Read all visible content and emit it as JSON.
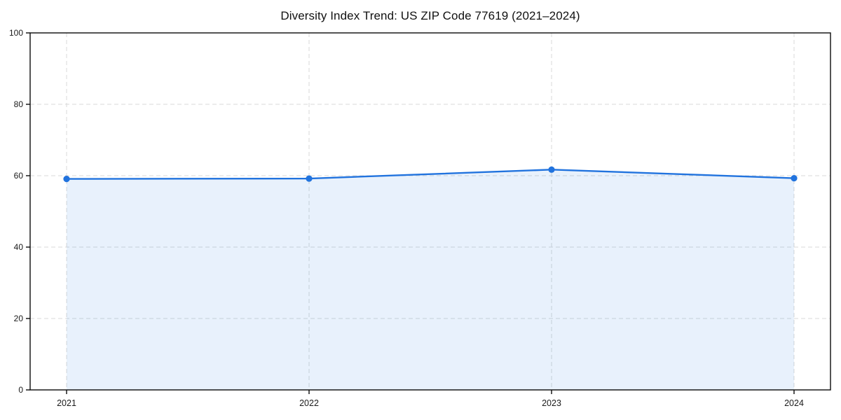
{
  "chart_data": {
    "type": "area",
    "title": "Diversity Index Trend: US ZIP Code 77619 (2021–2024)",
    "series_name": "Diversity Index",
    "categories": [
      "2021",
      "2022",
      "2023",
      "2024"
    ],
    "values": [
      59.1,
      59.2,
      61.7,
      59.3
    ],
    "xlabel": "",
    "ylabel": "",
    "ylim": [
      0,
      100
    ],
    "yticks": [
      0,
      20,
      40,
      60,
      80,
      100
    ],
    "grid": true,
    "grid_style": "dashed",
    "legend_position": "none",
    "line_color": "#2173de",
    "marker_color": "#2173de",
    "fill_color": "#2173de",
    "fill_opacity": 0.1,
    "gridline_color": "#d9d9d9",
    "spine_color": "#0a0a0a",
    "tick_label_color": "#1a1a1a"
  }
}
